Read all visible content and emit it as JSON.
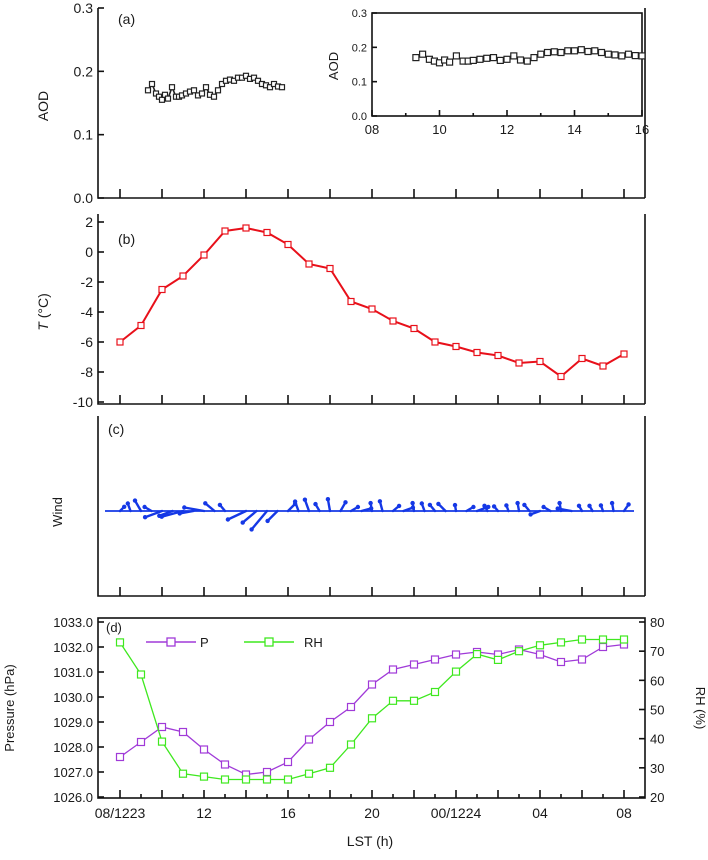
{
  "colors": {
    "aod": "#222222",
    "temp": "#e8101a",
    "wind": "#1538e6",
    "pressure": "#a03ad8",
    "rh": "#3fe81f"
  },
  "icons": {
    "square_marker": "square-marker-icon",
    "wind_barb": "wind-barb-icon"
  },
  "chart_data": [
    {
      "id": "a",
      "type": "line",
      "panel_label": "(a)",
      "ylabel": "AOD",
      "ylim": [
        0.0,
        0.3
      ],
      "yticks": [
        "0.0",
        "0.1",
        "0.2",
        "0.3"
      ],
      "ytick_values": [
        0.0,
        0.1,
        0.2,
        0.3
      ],
      "x": [
        9.3,
        9.5,
        9.7,
        9.85,
        10.0,
        10.15,
        10.3,
        10.5,
        10.7,
        10.85,
        11.0,
        11.2,
        11.4,
        11.6,
        11.8,
        12.0,
        12.2,
        12.4,
        12.6,
        12.8,
        13.0,
        13.2,
        13.4,
        13.6,
        13.8,
        14.0,
        14.2,
        14.4,
        14.6,
        14.8,
        15.0,
        15.2,
        15.4,
        15.6,
        15.8,
        16.0
      ],
      "values": [
        0.17,
        0.18,
        0.165,
        0.16,
        0.155,
        0.163,
        0.157,
        0.175,
        0.16,
        0.16,
        0.162,
        0.165,
        0.168,
        0.17,
        0.162,
        0.165,
        0.175,
        0.163,
        0.16,
        0.17,
        0.18,
        0.185,
        0.187,
        0.185,
        0.19,
        0.19,
        0.193,
        0.188,
        0.19,
        0.185,
        0.18,
        0.178,
        0.175,
        0.18,
        0.176,
        0.175
      ],
      "inset": {
        "ylabel": "AOD",
        "xticks": [
          "08",
          "10",
          "12",
          "14",
          "16"
        ],
        "xtick_values": [
          8,
          10,
          12,
          14,
          16
        ],
        "yticks": [
          "0.0",
          "0.1",
          "0.2",
          "0.3"
        ],
        "ytick_values": [
          0.0,
          0.1,
          0.2,
          0.3
        ],
        "xlim": [
          8,
          16
        ],
        "ylim": [
          0.0,
          0.3
        ]
      }
    },
    {
      "id": "b",
      "type": "line",
      "panel_label": "(b)",
      "ylabel": "T (°C)",
      "ylabel_var": "T",
      "ylabel_unit": " (°C)",
      "ylim": [
        -10,
        2
      ],
      "yticks": [
        "2",
        "0",
        "-2",
        "-4",
        "-6",
        "-8",
        "-10"
      ],
      "ytick_values": [
        2,
        0,
        -2,
        -4,
        -6,
        -8,
        -10
      ],
      "x": [
        8,
        9,
        10,
        11,
        12,
        13,
        14,
        15,
        16,
        17,
        18,
        19,
        20,
        21,
        22,
        23,
        24,
        25,
        26,
        27,
        28,
        29,
        30,
        31,
        32
      ],
      "values": [
        -6.0,
        -4.9,
        -2.5,
        -1.6,
        -0.2,
        1.4,
        1.6,
        1.3,
        0.5,
        -0.8,
        -1.1,
        -3.3,
        -3.8,
        -4.6,
        -5.1,
        -6.0,
        -6.3,
        -6.7,
        -6.9,
        -7.4,
        -7.3,
        -8.3,
        -7.1,
        -7.6,
        -6.8
      ]
    },
    {
      "id": "c",
      "type": "wind_barbs",
      "panel_label": "(c)",
      "ylabel": "Wind",
      "x": [
        8.0,
        8.5,
        9.0,
        9.5,
        10.0,
        10.5,
        11.0,
        11.5,
        12.0,
        12.5,
        13.0,
        14.0,
        14.5,
        15.0,
        15.5,
        16.0,
        16.5,
        17.0,
        17.5,
        18.0,
        18.5,
        19.0,
        19.5,
        20.0,
        20.5,
        21.0,
        21.5,
        22.0,
        22.5,
        23.0,
        23.5,
        24.0,
        24.5,
        25.0,
        25.5,
        26.0,
        26.5,
        27.0,
        27.5,
        28.0,
        28.5,
        29.0,
        29.5,
        30.0,
        30.5,
        31.0,
        31.5,
        32.0
      ],
      "barb_dir": [
        45,
        -20,
        -30,
        -60,
        -110,
        -110,
        -105,
        -100,
        -80,
        -50,
        -40,
        -115,
        -130,
        -140,
        -135,
        45,
        -20,
        -20,
        -30,
        -10,
        30,
        60,
        75,
        -10,
        -15,
        50,
        70,
        -10,
        -20,
        -40,
        -45,
        -10,
        60,
        70,
        -30,
        -40,
        -20,
        -10,
        -40,
        -110,
        -60,
        -10,
        -80,
        -30,
        -30,
        -20,
        -10,
        35
      ],
      "barb_len": [
        6,
        8,
        12,
        8,
        18,
        14,
        22,
        14,
        20,
        12,
        8,
        20,
        18,
        24,
        14,
        10,
        10,
        12,
        8,
        12,
        10,
        8,
        10,
        8,
        10,
        8,
        10,
        8,
        8,
        8,
        10,
        6,
        8,
        12,
        6,
        6,
        6,
        8,
        8,
        10,
        8,
        8,
        14,
        6,
        6,
        6,
        8,
        8
      ]
    },
    {
      "id": "d",
      "type": "line",
      "panel_label": "(d)",
      "xlabel": "LST (h)",
      "xticks": [
        "08/1223",
        "12",
        "16",
        "20",
        "00/1224",
        "04",
        "08"
      ],
      "xtick_values": [
        8,
        12,
        16,
        20,
        24,
        28,
        32
      ],
      "ylabel_left": "Pressure (hPa)",
      "ylim_left": [
        1026.0,
        1033.0
      ],
      "yticks_left": [
        "1033.0",
        "1032.0",
        "1031.0",
        "1030.0",
        "1029.0",
        "1028.0",
        "1027.0",
        "1026.0"
      ],
      "ytick_values_left": [
        1033,
        1032,
        1031,
        1030,
        1029,
        1028,
        1027,
        1026
      ],
      "ylabel_right": "RH (%)",
      "ylim_right": [
        20,
        80
      ],
      "yticks_right": [
        "80",
        "70",
        "60",
        "50",
        "40",
        "30",
        "20"
      ],
      "ytick_values_right": [
        80,
        70,
        60,
        50,
        40,
        30,
        20
      ],
      "legend": {
        "placement": "top-left",
        "entries": [
          "P",
          "RH"
        ]
      },
      "x": [
        8,
        9,
        10,
        11,
        12,
        13,
        14,
        15,
        16,
        17,
        18,
        19,
        20,
        21,
        22,
        23,
        24,
        25,
        26,
        27,
        28,
        29,
        30,
        31,
        32
      ],
      "series": [
        {
          "name": "P",
          "axis": "left",
          "values": [
            1027.6,
            1028.2,
            1028.8,
            1028.6,
            1027.9,
            1027.3,
            1026.9,
            1027.0,
            1027.4,
            1028.3,
            1029.0,
            1029.6,
            1030.5,
            1031.1,
            1031.3,
            1031.5,
            1031.7,
            1031.8,
            1031.7,
            1031.9,
            1031.7,
            1031.4,
            1031.5,
            1032.0,
            1032.1
          ]
        },
        {
          "name": "RH",
          "axis": "right",
          "values": [
            73,
            62,
            39,
            28,
            27,
            26,
            26,
            26,
            26,
            28,
            30,
            38,
            47,
            53,
            53,
            56,
            63,
            69,
            67,
            70,
            72,
            73,
            74,
            74,
            74
          ]
        }
      ]
    }
  ]
}
